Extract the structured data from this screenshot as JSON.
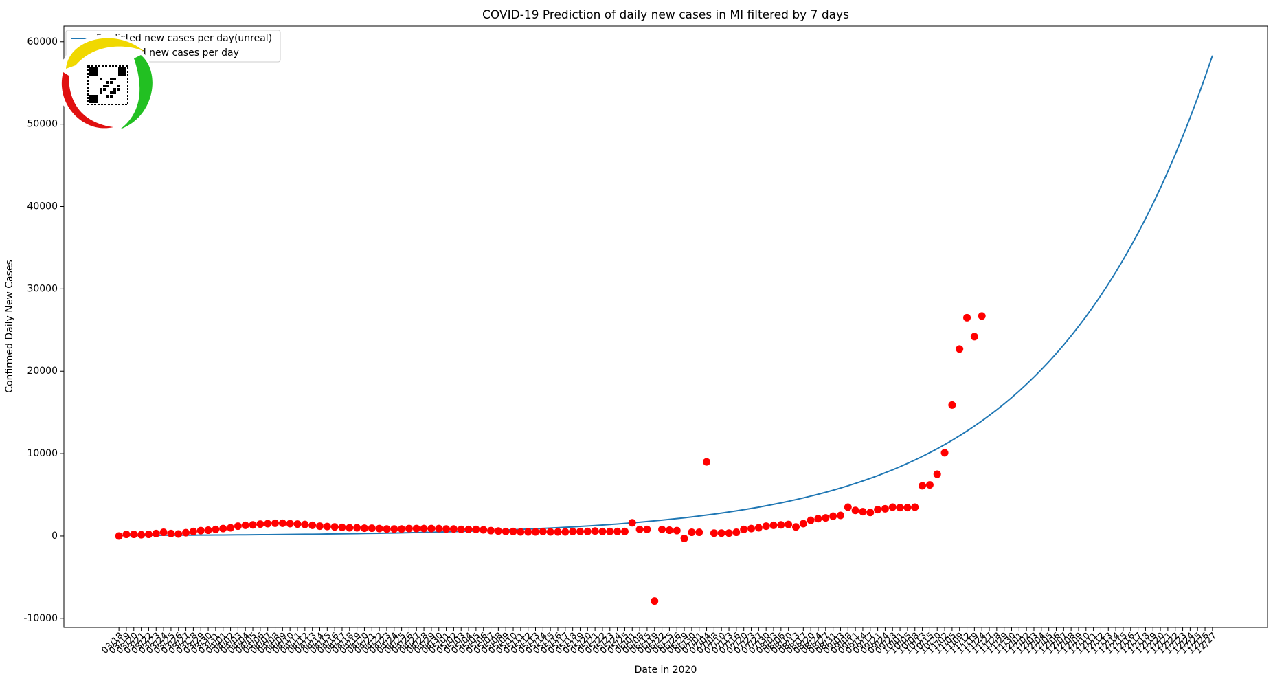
{
  "chart_data": {
    "type": "line",
    "title": "COVID-19 Prediction of daily new cases in MI filtered by 7 days",
    "xlabel": "Date in 2020",
    "ylabel": "Confirmed Daily New Cases",
    "legend": "upper left",
    "grid": false,
    "ylim": [
      -11100,
      61900
    ],
    "yticks": [
      -10000,
      0,
      10000,
      20000,
      30000,
      40000,
      50000,
      60000
    ],
    "categories": [
      "03/18",
      "03/19",
      "03/20",
      "03/21",
      "03/22",
      "03/23",
      "03/24",
      "03/25",
      "03/26",
      "03/27",
      "03/28",
      "03/29",
      "03/30",
      "03/31",
      "04/01",
      "04/02",
      "04/03",
      "04/04",
      "04/05",
      "04/06",
      "04/07",
      "04/08",
      "04/09",
      "04/10",
      "04/11",
      "04/12",
      "04/13",
      "04/14",
      "04/15",
      "04/16",
      "04/17",
      "04/18",
      "04/19",
      "04/20",
      "04/21",
      "04/22",
      "04/23",
      "04/24",
      "04/25",
      "04/26",
      "04/27",
      "04/28",
      "04/29",
      "04/30",
      "05/01",
      "05/02",
      "05/03",
      "05/04",
      "05/05",
      "05/06",
      "05/07",
      "05/08",
      "05/09",
      "05/10",
      "05/11",
      "05/12",
      "05/13",
      "05/14",
      "05/15",
      "05/16",
      "05/17",
      "05/18",
      "05/19",
      "05/20",
      "05/21",
      "05/22",
      "05/23",
      "05/24",
      "05/25",
      "06/01",
      "06/08",
      "06/15",
      "06/19",
      "06/22",
      "06/25",
      "06/26",
      "06/29",
      "06/30",
      "07/01",
      "07/04",
      "07/08",
      "07/10",
      "07/13",
      "07/16",
      "07/20",
      "07/23",
      "07/27",
      "07/30",
      "08/03",
      "08/06",
      "08/10",
      "08/13",
      "08/17",
      "08/20",
      "08/24",
      "08/27",
      "08/31",
      "09/03",
      "09/08",
      "09/11",
      "09/14",
      "09/17",
      "09/21",
      "09/24",
      "09/28",
      "10/01",
      "10/05",
      "10/08",
      "10/13",
      "10/15",
      "10/20",
      "11/02",
      "11/05",
      "11/09",
      "11/12",
      "11/19",
      "11/24",
      "11/27",
      "11/28",
      "11/29",
      "11/30",
      "12/01",
      "12/02",
      "12/03",
      "12/04",
      "12/05",
      "12/06",
      "12/07",
      "12/08",
      "12/09",
      "12/10",
      "12/11",
      "12/12",
      "12/13",
      "12/14",
      "12/15",
      "12/16",
      "12/17",
      "12/18",
      "12/19",
      "12/20",
      "12/21",
      "12/22",
      "12/23",
      "12/24",
      "12/25",
      "12/26",
      "12/27"
    ],
    "series": [
      {
        "name": "Predicted new cases per day(unreal)",
        "kind": "line",
        "color": "#1f77b4",
        "values": [
          67,
          70,
          73,
          76,
          80,
          84,
          88,
          92,
          96,
          101,
          105,
          110,
          115,
          121,
          126,
          132,
          139,
          145,
          152,
          159,
          167,
          175,
          183,
          192,
          201,
          210,
          220,
          230,
          241,
          253,
          265,
          277,
          290,
          304,
          318,
          333,
          349,
          365,
          383,
          401,
          420,
          440,
          460,
          482,
          505,
          529,
          554,
          580,
          607,
          636,
          666,
          697,
          730,
          765,
          801,
          839,
          878,
          920,
          963,
          1009,
          1056,
          1106,
          1159,
          1213,
          1270,
          1330,
          1393,
          1459,
          1528,
          1600,
          1675,
          1754,
          1837,
          1924,
          2015,
          2110,
          2209,
          2314,
          2423,
          2537,
          2657,
          2782,
          2913,
          3051,
          3195,
          3346,
          3503,
          3669,
          3842,
          4023,
          4213,
          4412,
          4620,
          4838,
          5066,
          5305,
          5556,
          5818,
          6092,
          6380,
          6681,
          6996,
          7326,
          7672,
          8034,
          8413,
          8810,
          9225,
          9661,
          10117,
          10594,
          11094,
          11617,
          12165,
          12739,
          13340,
          13970,
          14629,
          15319,
          16042,
          16799,
          17591,
          18421,
          19291,
          20201,
          21154,
          22152,
          23197,
          24292,
          25438,
          26638,
          27895,
          29211,
          30590,
          32033,
          33544,
          35127,
          36785,
          38520,
          40338,
          42241,
          44234,
          46321,
          48507,
          50796,
          53193,
          55703,
          58331
        ]
      },
      {
        "name": "Confirmed new cases per day",
        "kind": "scatter",
        "color": "#ff0000",
        "values": [
          0,
          200,
          200,
          150,
          200,
          300,
          450,
          300,
          250,
          400,
          550,
          650,
          700,
          800,
          900,
          1000,
          1200,
          1300,
          1350,
          1450,
          1500,
          1550,
          1550,
          1500,
          1450,
          1400,
          1300,
          1200,
          1150,
          1100,
          1050,
          1000,
          1000,
          950,
          950,
          900,
          850,
          850,
          850,
          900,
          900,
          900,
          900,
          900,
          850,
          850,
          800,
          800,
          800,
          750,
          650,
          600,
          550,
          550,
          500,
          500,
          500,
          550,
          500,
          500,
          500,
          550,
          550,
          550,
          600,
          550,
          550,
          550,
          550,
          1600,
          800,
          800,
          -7900,
          800,
          700,
          650,
          -300,
          450,
          450,
          9000,
          350,
          350,
          350,
          450,
          800,
          900,
          1000,
          1200,
          1300,
          1350,
          1400,
          1100,
          1500,
          1900,
          2100,
          2200,
          2400,
          2500,
          3500,
          3100,
          2950,
          2850,
          3200,
          3300,
          3500,
          3450,
          3450,
          3500,
          6100,
          6200,
          7500,
          10100,
          15900,
          22700,
          26500,
          24200,
          26700,
          null,
          null,
          null,
          null,
          null,
          null,
          null,
          null,
          null,
          null,
          null,
          null,
          null,
          null,
          null,
          null,
          null,
          null,
          null,
          null,
          null,
          null,
          null,
          null,
          null,
          null,
          null,
          null,
          null,
          null,
          null
        ]
      }
    ]
  }
}
